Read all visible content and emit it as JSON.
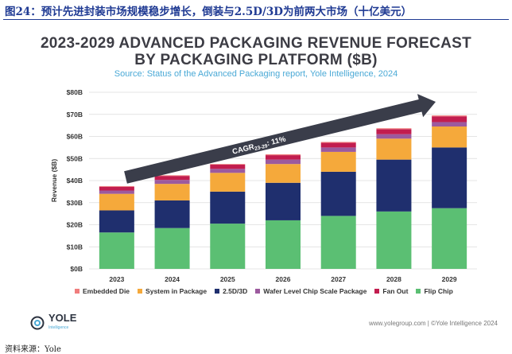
{
  "figure_title": "图24：预计先进封装市场规模稳步增长，倒装与2.5D/3D为前两大市场（十亿美元）",
  "source_note": "资料来源：Yole",
  "logo": {
    "name": "YOLE",
    "sub": "Intelligence"
  },
  "footer_right": "www.yolegroup.com | ©Yole Intelligence 2024",
  "colors": {
    "title_blue": "#1f3a93",
    "arrow": "#3a3d4a"
  },
  "chart_data": {
    "type": "bar",
    "stacked": true,
    "title_line1": "2023-2029 ADVANCED PACKAGING REVENUE FORECAST",
    "title_line2": "BY PACKAGING PLATFORM ($B)",
    "subtitle": "Source: Status of the Advanced Packaging report, Yole Intelligence, 2024",
    "xlabel": "",
    "ylabel": "Revenue ($B)",
    "ylim": [
      0,
      80
    ],
    "ytick_labels": [
      "$0B",
      "$10B",
      "$20B",
      "$30B",
      "$40B",
      "$50B",
      "$60B",
      "$70B",
      "$80B"
    ],
    "grid": true,
    "legend_position": "bottom",
    "annotation": {
      "text": "CAGR",
      "sub": "23-29",
      "value": ": 11%"
    },
    "categories": [
      "2023",
      "2024",
      "2025",
      "2026",
      "2027",
      "2028",
      "2029"
    ],
    "series": [
      {
        "name": "Flip Chip",
        "color": "#5bbf73",
        "values": [
          16.5,
          18.5,
          20.5,
          22,
          24,
          26,
          27.5
        ]
      },
      {
        "name": "2.5D/3D",
        "color": "#1f2f6e",
        "values": [
          10,
          12.5,
          14.5,
          17,
          20,
          23.5,
          27.5
        ]
      },
      {
        "name": "System in Package",
        "color": "#f5a93b",
        "values": [
          7.5,
          7.5,
          8.5,
          8.5,
          9,
          9.5,
          9.5
        ]
      },
      {
        "name": "Wafer Level Chip Scale Package",
        "color": "#9c5a9e",
        "values": [
          1.5,
          1.8,
          1.8,
          2,
          2,
          2,
          2
        ]
      },
      {
        "name": "Fan Out",
        "color": "#c21d4f",
        "values": [
          1.7,
          1.8,
          1.9,
          2,
          2.1,
          2.3,
          2.6
        ]
      },
      {
        "name": "Embedded Die",
        "color": "#f07d7d",
        "values": [
          0.3,
          0.3,
          0.3,
          0.4,
          0.4,
          0.4,
          0.4
        ]
      }
    ],
    "legend_order": [
      "Embedded Die",
      "System in Package",
      "2.5D/3D",
      "Wafer Level Chip Scale Package",
      "Fan Out",
      "Flip Chip"
    ]
  }
}
